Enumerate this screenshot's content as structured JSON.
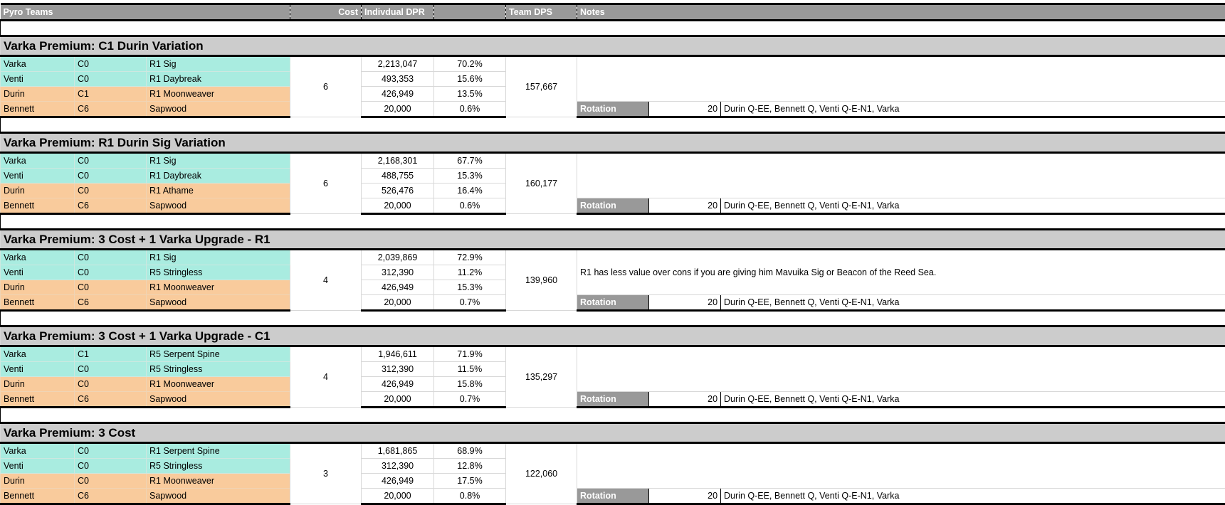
{
  "header": {
    "title": "Pyro Teams",
    "cost": "Cost",
    "individual_dpr": "Indivdual DPR",
    "team_dps": "Team DPS",
    "notes": "Notes"
  },
  "colors": {
    "header": "#999999",
    "section": "#cccccc",
    "teal": "#a9ece0",
    "orange": "#f9cb9c"
  },
  "rotation_label": "Rotation",
  "teams": [
    {
      "title": "Varka Premium: C1 Durin Variation",
      "cost": "6",
      "team_dps": "157,667",
      "note": "",
      "rotation_count": "20",
      "rotation": "Durin Q-EE, Bennett Q, Venti Q-E-N1, Varka",
      "members": [
        {
          "name": "Varka",
          "cons": "C0",
          "weapon": "R1 Sig",
          "dpr": "2,213,047",
          "pct": "70.2%",
          "color": "teal"
        },
        {
          "name": "Venti",
          "cons": "C0",
          "weapon": "R1 Daybreak",
          "dpr": "493,353",
          "pct": "15.6%",
          "color": "teal"
        },
        {
          "name": "Durin",
          "cons": "C1",
          "weapon": "R1 Moonweaver",
          "dpr": "426,949",
          "pct": "13.5%",
          "color": "orange"
        },
        {
          "name": "Bennett",
          "cons": "C6",
          "weapon": "Sapwood",
          "dpr": "20,000",
          "pct": "0.6%",
          "color": "orange"
        }
      ]
    },
    {
      "title": "Varka Premium: R1 Durin Sig Variation",
      "cost": "6",
      "team_dps": "160,177",
      "note": "",
      "rotation_count": "20",
      "rotation": "Durin Q-EE, Bennett Q, Venti Q-E-N1, Varka",
      "members": [
        {
          "name": "Varka",
          "cons": "C0",
          "weapon": "R1 Sig",
          "dpr": "2,168,301",
          "pct": "67.7%",
          "color": "teal"
        },
        {
          "name": "Venti",
          "cons": "C0",
          "weapon": "R1 Daybreak",
          "dpr": "488,755",
          "pct": "15.3%",
          "color": "teal"
        },
        {
          "name": "Durin",
          "cons": "C0",
          "weapon": "R1 Athame",
          "dpr": "526,476",
          "pct": "16.4%",
          "color": "orange"
        },
        {
          "name": "Bennett",
          "cons": "C6",
          "weapon": "Sapwood",
          "dpr": "20,000",
          "pct": "0.6%",
          "color": "orange"
        }
      ]
    },
    {
      "title": "Varka Premium: 3 Cost + 1 Varka Upgrade - R1",
      "cost": "4",
      "team_dps": "139,960",
      "note": "R1 has less value over cons if you are giving him Mavuika Sig or Beacon of the Reed Sea.",
      "rotation_count": "20",
      "rotation": "Durin Q-EE, Bennett Q, Venti Q-E-N1, Varka",
      "members": [
        {
          "name": "Varka",
          "cons": "C0",
          "weapon": "R1 Sig",
          "dpr": "2,039,869",
          "pct": "72.9%",
          "color": "teal"
        },
        {
          "name": "Venti",
          "cons": "C0",
          "weapon": "R5 Stringless",
          "dpr": "312,390",
          "pct": "11.2%",
          "color": "teal"
        },
        {
          "name": "Durin",
          "cons": "C0",
          "weapon": "R1 Moonweaver",
          "dpr": "426,949",
          "pct": "15.3%",
          "color": "orange"
        },
        {
          "name": "Bennett",
          "cons": "C6",
          "weapon": "Sapwood",
          "dpr": "20,000",
          "pct": "0.7%",
          "color": "orange"
        }
      ]
    },
    {
      "title": "Varka Premium: 3 Cost + 1 Varka Upgrade - C1",
      "cost": "4",
      "team_dps": "135,297",
      "note": "",
      "rotation_count": "20",
      "rotation": "Durin Q-EE, Bennett Q, Venti Q-E-N1, Varka",
      "members": [
        {
          "name": "Varka",
          "cons": "C1",
          "weapon": "R5 Serpent Spine",
          "dpr": "1,946,611",
          "pct": "71.9%",
          "color": "teal"
        },
        {
          "name": "Venti",
          "cons": "C0",
          "weapon": "R5 Stringless",
          "dpr": "312,390",
          "pct": "11.5%",
          "color": "teal"
        },
        {
          "name": "Durin",
          "cons": "C0",
          "weapon": "R1 Moonweaver",
          "dpr": "426,949",
          "pct": "15.8%",
          "color": "orange"
        },
        {
          "name": "Bennett",
          "cons": "C6",
          "weapon": "Sapwood",
          "dpr": "20,000",
          "pct": "0.7%",
          "color": "orange"
        }
      ]
    },
    {
      "title": "Varka Premium: 3 Cost",
      "cost": "3",
      "team_dps": "122,060",
      "note": "",
      "rotation_count": "20",
      "rotation": "Durin Q-EE, Bennett Q, Venti Q-E-N1, Varka",
      "members": [
        {
          "name": "Varka",
          "cons": "C0",
          "weapon": "R1 Serpent Spine",
          "dpr": "1,681,865",
          "pct": "68.9%",
          "color": "teal"
        },
        {
          "name": "Venti",
          "cons": "C0",
          "weapon": "R5 Stringless",
          "dpr": "312,390",
          "pct": "12.8%",
          "color": "teal"
        },
        {
          "name": "Durin",
          "cons": "C0",
          "weapon": "R1 Moonweaver",
          "dpr": "426,949",
          "pct": "17.5%",
          "color": "orange"
        },
        {
          "name": "Bennett",
          "cons": "C6",
          "weapon": "Sapwood",
          "dpr": "20,000",
          "pct": "0.8%",
          "color": "orange"
        }
      ]
    }
  ]
}
